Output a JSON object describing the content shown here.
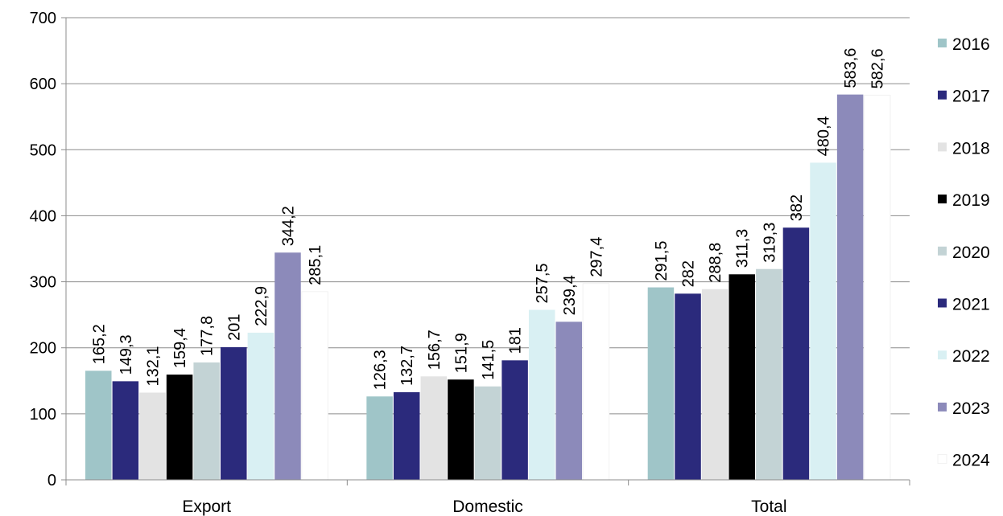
{
  "chart_data": {
    "type": "bar",
    "categories": [
      "Export",
      "Domestic",
      "Total"
    ],
    "ylim": [
      0,
      700
    ],
    "yticks": [
      "0",
      "100",
      "200",
      "300",
      "400",
      "500",
      "600",
      "700"
    ],
    "ytick_values": [
      0,
      100,
      200,
      300,
      400,
      500,
      600,
      700
    ],
    "legend_position": "right",
    "grid": true,
    "series": [
      {
        "name": "2016",
        "color": "#9fc5c8",
        "values": [
          165.2,
          126.3,
          291.5
        ],
        "labels": [
          "165,2",
          "126,3",
          "291,5"
        ]
      },
      {
        "name": "2017",
        "color": "#2b2a7c",
        "values": [
          149.3,
          132.7,
          282
        ],
        "labels": [
          "149,3",
          "132,7",
          "282"
        ]
      },
      {
        "name": "2018",
        "color": "#e3e3e3",
        "values": [
          132.1,
          156.7,
          288.8
        ],
        "labels": [
          "132,1",
          "156,7",
          "288,8"
        ]
      },
      {
        "name": "2019",
        "color": "#000000",
        "values": [
          159.4,
          151.9,
          311.3
        ],
        "labels": [
          "159,4",
          "151,9",
          "311,3"
        ]
      },
      {
        "name": "2020",
        "color": "#c3d3d5",
        "values": [
          177.8,
          141.5,
          319.3
        ],
        "labels": [
          "177,8",
          "141,5",
          "319,3"
        ]
      },
      {
        "name": "2021",
        "color": "#2b2a7c",
        "values": [
          201,
          181,
          382
        ],
        "labels": [
          "201",
          "181",
          "382"
        ]
      },
      {
        "name": "2022",
        "color": "#d9f0f3",
        "values": [
          222.9,
          257.5,
          480.4
        ],
        "labels": [
          "222,9",
          "257,5",
          "480,4"
        ]
      },
      {
        "name": "2023",
        "color": "#8c8aba",
        "values": [
          344.2,
          239.4,
          583.6
        ],
        "labels": [
          "344,2",
          "239,4",
          "583,6"
        ]
      },
      {
        "name": "2024",
        "color": "#ffffff",
        "values": [
          285.1,
          297.4,
          582.6
        ],
        "labels": [
          "285,1",
          "297,4",
          "582,6"
        ]
      }
    ]
  }
}
